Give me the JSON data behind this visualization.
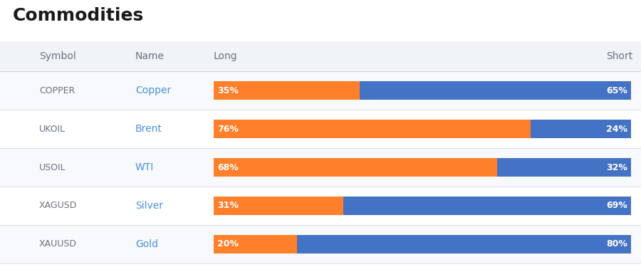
{
  "title": "Commodities",
  "header": {
    "symbol": "Symbol",
    "name": "Name",
    "long": "Long",
    "short": "Short"
  },
  "rows": [
    {
      "symbol": "COPPER",
      "name": "Copper",
      "long": 35,
      "short": 65
    },
    {
      "symbol": "UKOIL",
      "name": "Brent",
      "long": 76,
      "short": 24
    },
    {
      "symbol": "USOIL",
      "name": "WTI",
      "long": 68,
      "short": 32
    },
    {
      "symbol": "XAGUSD",
      "name": "Silver",
      "long": 31,
      "short": 69
    },
    {
      "symbol": "XAUUSD",
      "name": "Gold",
      "long": 20,
      "short": 80
    }
  ],
  "color_long": "#FF7F2A",
  "color_short": "#4472C4",
  "color_name": "#4A90D9",
  "color_symbol": "#6B7280",
  "color_header_bg": "#F0F3F7",
  "color_row_bg_odd": "#F7F9FC",
  "color_row_bg_even": "#FFFFFF",
  "color_header_text": "#6B7280",
  "color_divider": "#D1D5DB",
  "title_fontsize": 18,
  "header_fontsize": 10,
  "symbol_fontsize": 9,
  "name_fontsize": 10,
  "bar_label_fontsize": 9
}
